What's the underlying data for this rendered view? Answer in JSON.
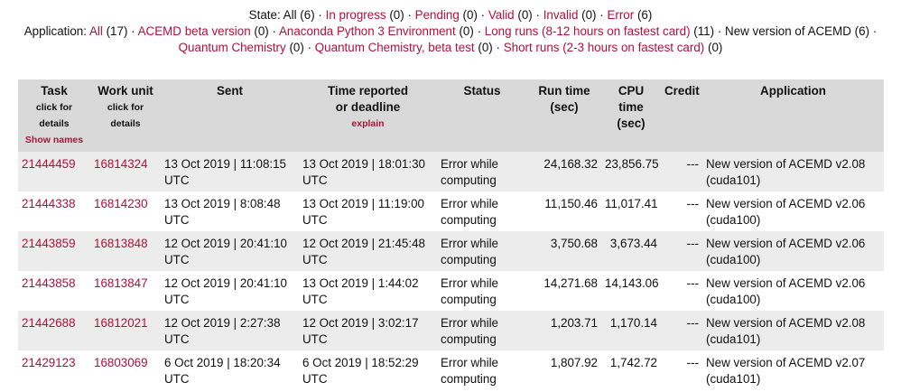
{
  "filters": {
    "state_label": "State:",
    "state": [
      {
        "name": "All",
        "count": "(6)",
        "active": true
      },
      {
        "name": "In progress",
        "count": "(0)",
        "active": false
      },
      {
        "name": "Pending",
        "count": "(0)",
        "active": false
      },
      {
        "name": "Valid",
        "count": "(0)",
        "active": false
      },
      {
        "name": "Invalid",
        "count": "(0)",
        "active": false
      },
      {
        "name": "Error",
        "count": "(6)",
        "active": false
      }
    ],
    "application_label": "Application:",
    "application_line1": [
      {
        "name": "All",
        "count": "(17)",
        "active": false
      },
      {
        "name": "ACEMD beta version",
        "count": "(0)",
        "active": false
      },
      {
        "name": "Anaconda Python 3 Environment",
        "count": "(0)",
        "active": false
      },
      {
        "name": "Long runs (8-12 hours on fastest card)",
        "count": "(11)",
        "active": false
      },
      {
        "name": "New version of ACEMD",
        "count": "(6)",
        "active": true
      }
    ],
    "application_line2": [
      {
        "name": "Quantum Chemistry",
        "count": "(0)",
        "active": false
      },
      {
        "name": "Quantum Chemistry, beta test",
        "count": "(0)",
        "active": false
      },
      {
        "name": "Short runs (2-3 hours on fastest card)",
        "count": "(0)",
        "active": false
      }
    ],
    "separator": "·"
  },
  "table": {
    "headers": {
      "task": "Task",
      "task_sub1": "click for",
      "task_sub2": "details",
      "show_names": "Show names",
      "workunit": "Work unit",
      "workunit_sub1": "click for",
      "workunit_sub2": "details",
      "sent": "Sent",
      "reported1": "Time reported",
      "reported2": "or deadline",
      "explain": "explain",
      "status": "Status",
      "runtime1": "Run time",
      "runtime2": "(sec)",
      "cputime1": "CPU time",
      "cputime2": "(sec)",
      "credit": "Credit",
      "application": "Application"
    },
    "rows": [
      {
        "task": "21444459",
        "workunit": "16814324",
        "sent1": "13 Oct 2019 | 11:08:15",
        "sent2": "UTC",
        "reported1": "13 Oct 2019 | 18:01:30",
        "reported2": "UTC",
        "status1": "Error while",
        "status2": "computing",
        "runtime": "24,168.32",
        "cputime": "23,856.75",
        "credit": "---",
        "app1": "New version of ACEMD v2.08",
        "app2": "(cuda101)"
      },
      {
        "task": "21444338",
        "workunit": "16814230",
        "sent1": "13 Oct 2019 | 8:08:48",
        "sent2": "UTC",
        "reported1": "13 Oct 2019 | 11:19:00",
        "reported2": "UTC",
        "status1": "Error while",
        "status2": "computing",
        "runtime": "11,150.46",
        "cputime": "11,017.41",
        "credit": "---",
        "app1": "New version of ACEMD v2.06",
        "app2": "(cuda100)"
      },
      {
        "task": "21443859",
        "workunit": "16813848",
        "sent1": "12 Oct 2019 | 20:41:10",
        "sent2": "UTC",
        "reported1": "12 Oct 2019 | 21:45:48",
        "reported2": "UTC",
        "status1": "Error while",
        "status2": "computing",
        "runtime": "3,750.68",
        "cputime": "3,673.44",
        "credit": "---",
        "app1": "New version of ACEMD v2.06",
        "app2": "(cuda100)"
      },
      {
        "task": "21443858",
        "workunit": "16813847",
        "sent1": "12 Oct 2019 | 20:41:10",
        "sent2": "UTC",
        "reported1": "13 Oct 2019 | 1:44:02",
        "reported2": "UTC",
        "status1": "Error while",
        "status2": "computing",
        "runtime": "14,271.68",
        "cputime": "14,143.06",
        "credit": "---",
        "app1": "New version of ACEMD v2.06",
        "app2": "(cuda100)"
      },
      {
        "task": "21442688",
        "workunit": "16812021",
        "sent1": "12 Oct 2019 | 2:27:38",
        "sent2": "UTC",
        "reported1": "12 Oct 2019 | 3:02:17",
        "reported2": "UTC",
        "status1": "Error while",
        "status2": "computing",
        "runtime": "1,203.71",
        "cputime": "1,170.14",
        "credit": "---",
        "app1": "New version of ACEMD v2.08",
        "app2": "(cuda101)"
      },
      {
        "task": "21429123",
        "workunit": "16803069",
        "sent1": "6 Oct 2019 | 18:20:34",
        "sent2": "UTC",
        "reported1": "6 Oct 2019 | 18:52:29",
        "reported2": "UTC",
        "status1": "Error while",
        "status2": "computing",
        "runtime": "1,807.92",
        "cputime": "1,742.72",
        "credit": "---",
        "app1": "New version of ACEMD v2.07",
        "app2": "(cuda101)"
      }
    ]
  },
  "colors": {
    "link": "#b0103a",
    "header_bg": "#d9d9d9",
    "row_alt_bg": "#ececec"
  }
}
